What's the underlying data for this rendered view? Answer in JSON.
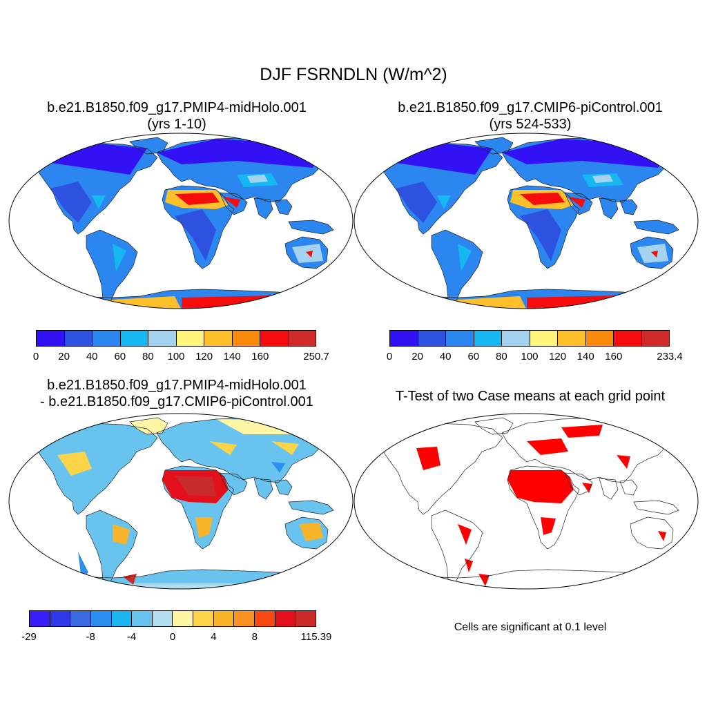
{
  "figure": {
    "title": "DJF FSRNDLN (W/m^2)"
  },
  "panels": {
    "midholo": {
      "title_line1": "b.e21.B1850.f09_g17.PMIP4-midHolo.001",
      "title_line2": "(yrs 1-10)",
      "colorbar": {
        "colors": [
          "#3311f5",
          "#2d52e0",
          "#2b86f0",
          "#16b8f2",
          "#a3d3ef",
          "#fff37a",
          "#fdc02a",
          "#fa8a0b",
          "#f50c0c",
          "#d02a2a"
        ],
        "ticks": [
          "0",
          "20",
          "40",
          "60",
          "80",
          "100",
          "120",
          "140",
          "160",
          "250.7"
        ]
      }
    },
    "picontrol": {
      "title_line1": "b.e21.B1850.f09_g17.CMIP6-piControl.001",
      "title_line2": "(yrs 524-533)",
      "colorbar": {
        "colors": [
          "#3311f5",
          "#2d52e0",
          "#2b86f0",
          "#16b8f2",
          "#a3d3ef",
          "#fff37a",
          "#fdc02a",
          "#fa8a0b",
          "#f50c0c",
          "#d02a2a"
        ],
        "ticks": [
          "0",
          "20",
          "40",
          "60",
          "80",
          "100",
          "120",
          "140",
          "160",
          "233.4"
        ]
      }
    },
    "difference": {
      "title_line1": "b.e21.B1850.f09_g17.PMIP4-midHolo.001",
      "title_line2": "- b.e21.B1850.f09_g17.CMIP6-piControl.001",
      "colorbar": {
        "colors": [
          "#3a1ff7",
          "#2e38e8",
          "#3a6ae0",
          "#2b8ff0",
          "#1cb5f0",
          "#68c4ee",
          "#b2dcef",
          "#fff6a6",
          "#fcd44a",
          "#f9b52a",
          "#f99220",
          "#f54a14",
          "#e3101b",
          "#c92a2a"
        ],
        "ticks": [
          "-29",
          "-8",
          "-4",
          "0",
          "4",
          "8",
          "115.39"
        ]
      }
    },
    "ttest": {
      "title": "T-Test of two Case means at each grid point",
      "note": "Cells are significant at 0.1 level",
      "significant_color": "#ff0000"
    }
  },
  "colors": {
    "map_outline": "#000000",
    "coastline": "#222222"
  }
}
